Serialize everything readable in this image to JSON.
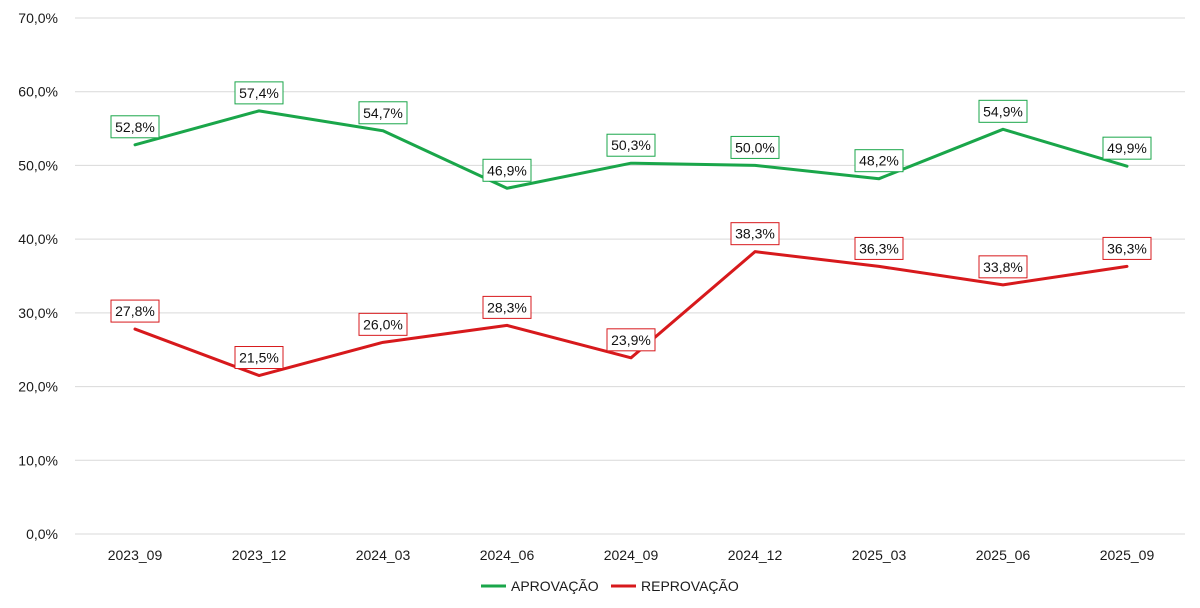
{
  "chart_data": {
    "type": "line",
    "categories": [
      "2023_09",
      "2023_12",
      "2024_03",
      "2024_06",
      "2024_09",
      "2024_12",
      "2025_03",
      "2025_06",
      "2025_09"
    ],
    "series": [
      {
        "name": "APROVAÇÃO",
        "color": "#1aa64a",
        "values": [
          52.8,
          57.4,
          54.7,
          46.9,
          50.3,
          50.0,
          48.2,
          54.9,
          49.9
        ],
        "labels": [
          "52,8%",
          "57,4%",
          "54,7%",
          "46,9%",
          "50,3%",
          "50,0%",
          "48,2%",
          "54,9%",
          "49,9%"
        ]
      },
      {
        "name": "REPROVAÇÃO",
        "color": "#d7191c",
        "values": [
          27.8,
          21.5,
          26.0,
          28.3,
          23.9,
          38.3,
          36.3,
          33.8,
          36.3
        ],
        "labels": [
          "27,8%",
          "21,5%",
          "26,0%",
          "28,3%",
          "23,9%",
          "38,3%",
          "36,3%",
          "33,8%",
          "36,3%"
        ]
      }
    ],
    "y_ticks": [
      0,
      10,
      20,
      30,
      40,
      50,
      60,
      70
    ],
    "y_tick_labels": [
      "0,0%",
      "10,0%",
      "20,0%",
      "30,0%",
      "40,0%",
      "50,0%",
      "60,0%",
      "70,0%"
    ],
    "ylim": [
      0,
      70
    ],
    "grid": true,
    "legend_position": "bottom-center"
  }
}
